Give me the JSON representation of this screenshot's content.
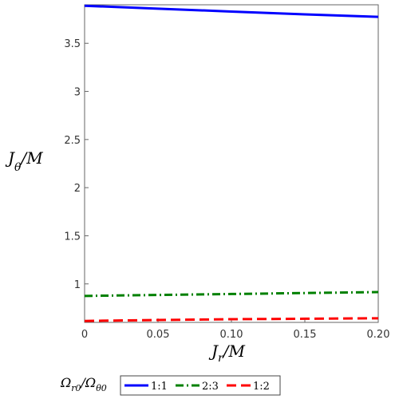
{
  "chart_data": {
    "type": "line",
    "title": "",
    "xlabel": {
      "main": "J",
      "sub": "r",
      "tail": "/M"
    },
    "ylabel": {
      "main": "J",
      "sub": "θ",
      "tail": "/M"
    },
    "xlim": [
      0,
      0.2
    ],
    "ylim": [
      0.6,
      3.9
    ],
    "xticks": [
      0,
      0.05,
      0.1,
      0.15,
      0.2
    ],
    "xtick_labels": [
      "0",
      "0.05",
      "0.10",
      "0.15",
      "0.20"
    ],
    "yticks": [
      1,
      1.5,
      2,
      2.5,
      3,
      3.5
    ],
    "ytick_labels": [
      "1",
      "1.5",
      "2",
      "2.5",
      "3",
      "3.5"
    ],
    "grid": false,
    "legend": {
      "position": "bottom",
      "title_parts": [
        "Ω",
        "r0",
        "/Ω",
        "θ0"
      ]
    },
    "series": [
      {
        "name": "1:1",
        "color": "#0000ff",
        "dash": "solid",
        "x": [
          0,
          0.05,
          0.1,
          0.15,
          0.2
        ],
        "y": [
          3.89,
          3.86,
          3.83,
          3.8,
          3.775
        ]
      },
      {
        "name": "2:3",
        "color": "#008000",
        "dash": "dashdot",
        "x": [
          0,
          0.05,
          0.1,
          0.15,
          0.2
        ],
        "y": [
          0.875,
          0.885,
          0.895,
          0.905,
          0.915
        ]
      },
      {
        "name": "1:2",
        "color": "#ff0000",
        "dash": "dash",
        "x": [
          0,
          0.05,
          0.1,
          0.15,
          0.2
        ],
        "y": [
          0.615,
          0.625,
          0.633,
          0.638,
          0.643
        ]
      }
    ]
  }
}
